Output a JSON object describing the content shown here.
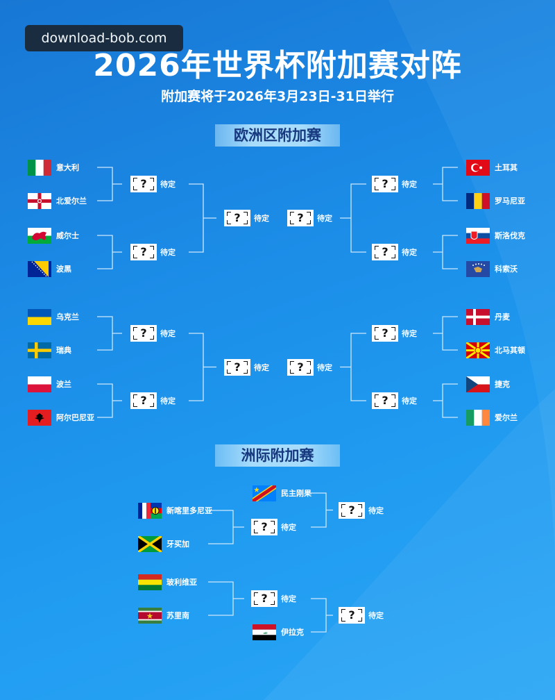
{
  "watermark": "download-bob.com",
  "title": "2026年世界杯附加赛对阵",
  "subtitle": "附加赛将于2026年3月23日-31日举行",
  "tbd_label": "待定",
  "tbd_symbol": "?",
  "europe": {
    "title": "欧洲区附加赛",
    "left": [
      {
        "name": "意大利",
        "flag": "italy"
      },
      {
        "name": "北爱尔兰",
        "flag": "northern-ireland"
      },
      {
        "name": "威尔士",
        "flag": "wales"
      },
      {
        "name": "波黑",
        "flag": "bosnia"
      },
      {
        "name": "乌克兰",
        "flag": "ukraine"
      },
      {
        "name": "瑞典",
        "flag": "sweden"
      },
      {
        "name": "波兰",
        "flag": "poland"
      },
      {
        "name": "阿尔巴尼亚",
        "flag": "albania"
      }
    ],
    "right": [
      {
        "name": "土耳其",
        "flag": "turkey"
      },
      {
        "name": "罗马尼亚",
        "flag": "romania"
      },
      {
        "name": "斯洛伐克",
        "flag": "slovakia"
      },
      {
        "name": "科索沃",
        "flag": "kosovo"
      },
      {
        "name": "丹麦",
        "flag": "denmark"
      },
      {
        "name": "北马其顿",
        "flag": "north-macedonia"
      },
      {
        "name": "捷克",
        "flag": "czech"
      },
      {
        "name": "爱尔兰",
        "flag": "ireland"
      }
    ]
  },
  "intercontinental": {
    "title": "洲际附加赛",
    "first_round": [
      {
        "name": "新喀里多尼亚",
        "flag": "new-caledonia"
      },
      {
        "name": "牙买加",
        "flag": "jamaica"
      },
      {
        "name": "玻利维亚",
        "flag": "bolivia"
      },
      {
        "name": "苏里南",
        "flag": "suriname"
      }
    ],
    "seeded": [
      {
        "name": "民主刚果",
        "flag": "dr-congo"
      },
      {
        "name": "伊拉克",
        "flag": "iraq"
      }
    ]
  }
}
